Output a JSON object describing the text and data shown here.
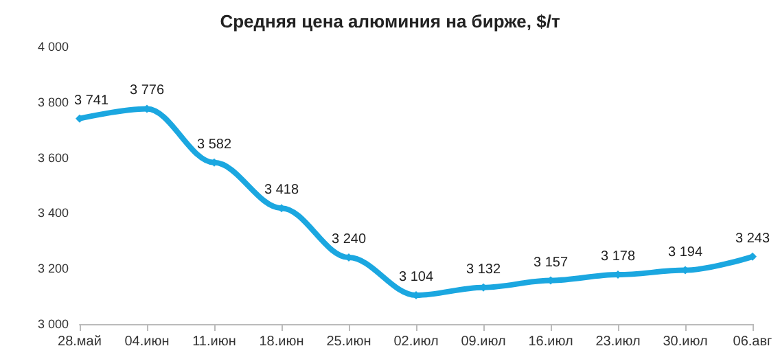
{
  "chart_data": {
    "type": "line",
    "title": "Средняя цена алюминия на бирже, $/т",
    "categories": [
      "28.май",
      "04.июн",
      "11.июн",
      "18.июн",
      "25.июн",
      "02.июл",
      "09.июл",
      "16.июл",
      "23.июл",
      "30.июл",
      "06.авг"
    ],
    "values": [
      3741,
      3776,
      3582,
      3418,
      3240,
      3104,
      3132,
      3157,
      3178,
      3194,
      3243
    ],
    "value_labels": [
      "3 741",
      "3 776",
      "3 582",
      "3 418",
      "3 240",
      "3 104",
      "3 132",
      "3 157",
      "3 178",
      "3 194",
      "3 243"
    ],
    "color": "#1ba7e0",
    "marker": "diamond",
    "line_style": "solid",
    "grid": false,
    "ylim": [
      3000,
      4000
    ],
    "yticks": [
      {
        "value": 3000,
        "label": "3 000"
      },
      {
        "value": 3200,
        "label": "3 200"
      },
      {
        "value": 3400,
        "label": "3 400"
      },
      {
        "value": 3600,
        "label": "3 600"
      },
      {
        "value": 3800,
        "label": "3 800"
      },
      {
        "value": 4000,
        "label": "4 000"
      }
    ]
  }
}
